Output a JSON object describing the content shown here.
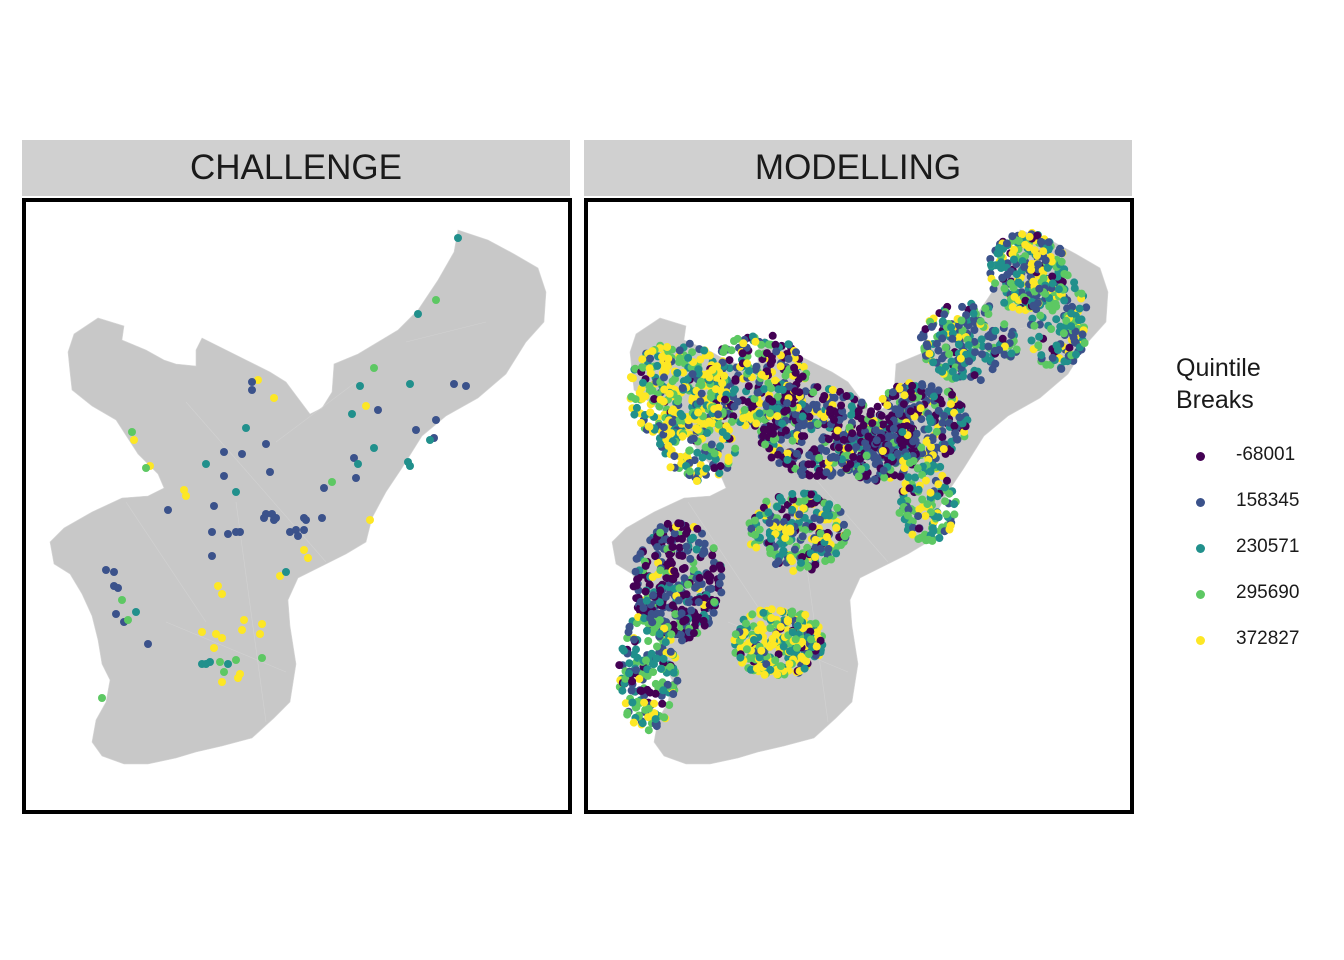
{
  "facets": [
    {
      "title": "CHALLENGE"
    },
    {
      "title": "MODELLING"
    }
  ],
  "legend": {
    "title_line1": "Quintile",
    "title_line2": "Breaks",
    "items": [
      {
        "label": "-68001",
        "color": "#440154"
      },
      {
        "label": "158345",
        "color": "#3b528b"
      },
      {
        "label": "230571",
        "color": "#21908c"
      },
      {
        "label": "295690",
        "color": "#5dc863"
      },
      {
        "label": "372827",
        "color": "#fde725"
      }
    ]
  },
  "map_fill": "#c8c8c8",
  "chart_data": {
    "type": "scatter",
    "description_hidden": false,
    "categories": [
      "-68001",
      "158345",
      "230571",
      "295690",
      "372827"
    ],
    "colors": [
      "#440154",
      "#3b528b",
      "#21908c",
      "#5dc863",
      "#fde725"
    ]
  }
}
